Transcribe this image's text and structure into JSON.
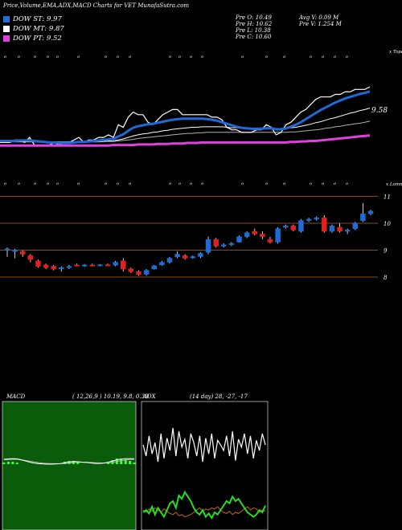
{
  "header": {
    "title": "Price,Volume,EMA,ADX,MACD Charts for VET MunafaSutra.com"
  },
  "legend": [
    {
      "label": "DOW ST: 9.97",
      "color": "#1e6bd8"
    },
    {
      "label": "DOW MT: 9.87",
      "color": "#ffffff"
    },
    {
      "label": "DOW PT: 9.52",
      "color": "#e040e0"
    }
  ],
  "stats": {
    "col1": [
      "Pre  O: 10.49",
      "Pre  H: 10.62",
      "Pre  L: 10.38",
      "Pre  C: 10.60"
    ],
    "col2": [
      "Avg V: 0.09 M",
      "Pre  V: 1.254  M"
    ]
  },
  "ema_panel": {
    "corner_label": "x Topa",
    "bottom_label": "x Lomn",
    "last_value": "9.58",
    "white_line": [
      2,
      2,
      2,
      2.5,
      2.5,
      2,
      3,
      1.5,
      1.5,
      1.5,
      1.5,
      2,
      1.5,
      2,
      2,
      2.5,
      3,
      2,
      2.5,
      2.5,
      3,
      3,
      3.5,
      3,
      5.5,
      5,
      7,
      8,
      7.5,
      7.5,
      6,
      5.5,
      6.5,
      7.5,
      8,
      8.5,
      8.5,
      7.5,
      7.5,
      7.5,
      7.5,
      7.5,
      7.5,
      7,
      7,
      6.5,
      5,
      4.5,
      4.5,
      4,
      4,
      4,
      4.5,
      4.5,
      5.5,
      5,
      3.5,
      4,
      5.5,
      6,
      7,
      8,
      8.5,
      9.5,
      10.5,
      11,
      11,
      11,
      11.5,
      11.5,
      12,
      12,
      12.5,
      12.5,
      12.5,
      13
    ],
    "blue_line": [
      2.3,
      2.3,
      2.3,
      2.3,
      2.4,
      2.4,
      2.4,
      2.3,
      2.2,
      2.1,
      2,
      2,
      1.9,
      1.9,
      1.9,
      2,
      2.1,
      2.1,
      2.2,
      2.3,
      2.4,
      2.5,
      2.6,
      2.7,
      3.2,
      3.6,
      4.3,
      4.9,
      5.2,
      5.4,
      5.6,
      5.7,
      5.9,
      6.1,
      6.3,
      6.5,
      6.6,
      6.7,
      6.7,
      6.7,
      6.7,
      6.7,
      6.6,
      6.5,
      6.3,
      6,
      5.7,
      5.4,
      5.1,
      4.9,
      4.8,
      4.7,
      4.7,
      4.7,
      4.8,
      4.8,
      4.6,
      4.6,
      4.8,
      5.1,
      5.5,
      6,
      6.6,
      7.2,
      7.8,
      8.4,
      8.9,
      9.4,
      9.9,
      10.3,
      10.7,
      11,
      11.3,
      11.6,
      11.8,
      12.1
    ],
    "white_slow": [
      2.2,
      2.2,
      2.2,
      2.2,
      2.2,
      2.2,
      2.2,
      2.2,
      2.2,
      2.2,
      2.1,
      2.1,
      2.1,
      2.1,
      2.1,
      2.1,
      2.1,
      2.1,
      2.1,
      2.2,
      2.2,
      2.2,
      2.3,
      2.3,
      2.5,
      2.7,
      3,
      3.3,
      3.5,
      3.7,
      3.8,
      4,
      4.1,
      4.3,
      4.4,
      4.6,
      4.7,
      4.8,
      4.9,
      5,
      5,
      5.1,
      5.1,
      5.1,
      5.1,
      5.1,
      5,
      4.9,
      4.9,
      4.8,
      4.8,
      4.8,
      4.7,
      4.7,
      4.7,
      4.7,
      4.7,
      4.7,
      4.8,
      4.9,
      5,
      5.2,
      5.4,
      5.6,
      5.9,
      6.1,
      6.4,
      6.7,
      6.9,
      7.2,
      7.5,
      7.8,
      8,
      8.3,
      8.5,
      8.8
    ],
    "gray_slow": [
      2.1,
      2.1,
      2.1,
      2.1,
      2.1,
      2.1,
      2.1,
      2.1,
      2.1,
      2.1,
      2.1,
      2.1,
      2.1,
      2.1,
      2.1,
      2.1,
      2.1,
      2.1,
      2.1,
      2.1,
      2.1,
      2.2,
      2.2,
      2.2,
      2.3,
      2.4,
      2.5,
      2.6,
      2.8,
      2.9,
      3,
      3.1,
      3.2,
      3.3,
      3.4,
      3.5,
      3.6,
      3.7,
      3.8,
      3.8,
      3.9,
      3.9,
      4,
      4,
      4,
      4,
      4,
      4,
      4,
      4,
      4,
      4,
      4,
      4,
      4,
      4,
      4,
      4,
      4,
      4.1,
      4.1,
      4.2,
      4.3,
      4.4,
      4.5,
      4.6,
      4.8,
      4.9,
      5.1,
      5.2,
      5.4,
      5.5,
      5.7,
      5.8,
      6,
      6.2
    ],
    "magenta_line": [
      1.4,
      1.4,
      1.4,
      1.4,
      1.4,
      1.4,
      1.4,
      1.4,
      1.4,
      1.4,
      1.4,
      1.4,
      1.4,
      1.4,
      1.4,
      1.4,
      1.4,
      1.4,
      1.4,
      1.4,
      1.4,
      1.4,
      1.4,
      1.5,
      1.5,
      1.5,
      1.5,
      1.5,
      1.6,
      1.6,
      1.6,
      1.6,
      1.7,
      1.7,
      1.7,
      1.8,
      1.8,
      1.8,
      1.9,
      1.9,
      1.9,
      2,
      2,
      2,
      2,
      2,
      2,
      2,
      2,
      2,
      2,
      2,
      2,
      2,
      2,
      2,
      2,
      2,
      2,
      2.1,
      2.1,
      2.2,
      2.2,
      2.3,
      2.3,
      2.4,
      2.5,
      2.6,
      2.7,
      2.8,
      2.9,
      3,
      3.1,
      3.2,
      3.3,
      3.4
    ]
  },
  "price_panel": {
    "ticks": [
      "11",
      "10",
      "9",
      "8"
    ],
    "candles": [
      {
        "o": 9.0,
        "h": 9.1,
        "l": 8.75,
        "c": 9.05
      },
      {
        "o": 8.95,
        "h": 9.05,
        "l": 8.7,
        "c": 9.0
      },
      {
        "o": 8.95,
        "h": 9.0,
        "l": 8.75,
        "c": 8.85
      },
      {
        "o": 8.8,
        "h": 8.85,
        "l": 8.55,
        "c": 8.65
      },
      {
        "o": 8.6,
        "h": 8.65,
        "l": 8.35,
        "c": 8.4
      },
      {
        "o": 8.45,
        "h": 8.5,
        "l": 8.3,
        "c": 8.35
      },
      {
        "o": 8.4,
        "h": 8.45,
        "l": 8.25,
        "c": 8.3
      },
      {
        "o": 8.3,
        "h": 8.4,
        "l": 8.2,
        "c": 8.35
      },
      {
        "o": 8.35,
        "h": 8.45,
        "l": 8.3,
        "c": 8.4
      },
      {
        "o": 8.45,
        "h": 8.5,
        "l": 8.4,
        "c": 8.42
      },
      {
        "o": 8.42,
        "h": 8.48,
        "l": 8.38,
        "c": 8.45
      },
      {
        "o": 8.45,
        "h": 8.5,
        "l": 8.4,
        "c": 8.43
      },
      {
        "o": 8.43,
        "h": 8.48,
        "l": 8.4,
        "c": 8.46
      },
      {
        "o": 8.46,
        "h": 8.5,
        "l": 8.42,
        "c": 8.44
      },
      {
        "o": 8.44,
        "h": 8.6,
        "l": 8.4,
        "c": 8.55
      },
      {
        "o": 8.6,
        "h": 8.7,
        "l": 8.2,
        "c": 8.3
      },
      {
        "o": 8.3,
        "h": 8.35,
        "l": 8.15,
        "c": 8.2
      },
      {
        "o": 8.2,
        "h": 8.25,
        "l": 8.05,
        "c": 8.1
      },
      {
        "o": 8.1,
        "h": 8.3,
        "l": 8.05,
        "c": 8.25
      },
      {
        "o": 8.3,
        "h": 8.45,
        "l": 8.28,
        "c": 8.42
      },
      {
        "o": 8.45,
        "h": 8.6,
        "l": 8.42,
        "c": 8.55
      },
      {
        "o": 8.55,
        "h": 8.75,
        "l": 8.5,
        "c": 8.7
      },
      {
        "o": 8.75,
        "h": 8.95,
        "l": 8.7,
        "c": 8.85
      },
      {
        "o": 8.8,
        "h": 8.85,
        "l": 8.65,
        "c": 8.7
      },
      {
        "o": 8.72,
        "h": 8.8,
        "l": 8.68,
        "c": 8.76
      },
      {
        "o": 8.76,
        "h": 8.92,
        "l": 8.7,
        "c": 8.88
      },
      {
        "o": 8.92,
        "h": 9.5,
        "l": 8.85,
        "c": 9.4
      },
      {
        "o": 9.4,
        "h": 9.45,
        "l": 9.1,
        "c": 9.15
      },
      {
        "o": 9.15,
        "h": 9.25,
        "l": 9.1,
        "c": 9.2
      },
      {
        "o": 9.2,
        "h": 9.3,
        "l": 9.15,
        "c": 9.25
      },
      {
        "o": 9.3,
        "h": 9.55,
        "l": 9.28,
        "c": 9.5
      },
      {
        "o": 9.5,
        "h": 9.7,
        "l": 9.45,
        "c": 9.65
      },
      {
        "o": 9.7,
        "h": 9.8,
        "l": 9.55,
        "c": 9.6
      },
      {
        "o": 9.6,
        "h": 9.7,
        "l": 9.4,
        "c": 9.5
      },
      {
        "o": 9.4,
        "h": 9.5,
        "l": 9.25,
        "c": 9.3
      },
      {
        "o": 9.3,
        "h": 9.85,
        "l": 9.25,
        "c": 9.8
      },
      {
        "o": 9.85,
        "h": 9.95,
        "l": 9.8,
        "c": 9.9
      },
      {
        "o": 9.9,
        "h": 9.95,
        "l": 9.7,
        "c": 9.75
      },
      {
        "o": 9.7,
        "h": 10.15,
        "l": 9.65,
        "c": 10.1
      },
      {
        "o": 10.1,
        "h": 10.2,
        "l": 10.05,
        "c": 10.15
      },
      {
        "o": 10.15,
        "h": 10.25,
        "l": 10.1,
        "c": 10.2
      },
      {
        "o": 10.2,
        "h": 10.3,
        "l": 9.65,
        "c": 9.7
      },
      {
        "o": 9.7,
        "h": 9.95,
        "l": 9.65,
        "c": 9.9
      },
      {
        "o": 9.85,
        "h": 10.0,
        "l": 9.65,
        "c": 9.7
      },
      {
        "o": 9.7,
        "h": 9.8,
        "l": 9.6,
        "c": 9.75
      },
      {
        "o": 9.8,
        "h": 10.05,
        "l": 9.75,
        "c": 10.0
      },
      {
        "o": 10.1,
        "h": 10.75,
        "l": 10.05,
        "c": 10.35
      },
      {
        "o": 10.35,
        "h": 10.5,
        "l": 10.3,
        "c": 10.45
      }
    ]
  },
  "macd_panel": {
    "title": "MACD",
    "params": "( 12,26,9 ) 10.19, 9.8, 0.39",
    "line1": [
      2,
      2.2,
      2.3,
      2.2,
      1.8,
      1.3,
      0.8,
      0.4,
      0.2,
      0.1,
      0.0,
      0.0,
      0.1,
      0.2,
      0.6,
      0.9,
      1.1,
      1.0,
      0.8,
      0.7,
      0.5,
      0.3,
      0.3,
      0.4,
      0.8,
      1.3,
      1.8,
      2.1,
      2.3,
      2.3,
      2.2
    ],
    "line2": [
      1.8,
      1.9,
      2.0,
      2.0,
      1.8,
      1.5,
      1.2,
      0.9,
      0.6,
      0.4,
      0.3,
      0.2,
      0.2,
      0.2,
      0.3,
      0.5,
      0.7,
      0.8,
      0.8,
      0.8,
      0.7,
      0.6,
      0.5,
      0.5,
      0.6,
      0.8,
      1.1,
      1.4,
      1.7,
      1.9,
      2.0
    ],
    "hist": [
      0.2,
      0.3,
      0.3,
      0.2,
      0.0,
      -0.2,
      -0.4,
      -0.5,
      -0.4,
      -0.3,
      -0.3,
      -0.2,
      -0.1,
      0.0,
      0.3,
      0.4,
      0.4,
      0.2,
      0.0,
      -0.1,
      -0.2,
      -0.3,
      -0.2,
      -0.1,
      0.2,
      0.5,
      0.7,
      0.7,
      0.6,
      0.4,
      0.2
    ]
  },
  "adx_panel": {
    "title": "ADX",
    "params": "(14 day) 28, -27, -17",
    "adx": [
      70,
      60,
      78,
      62,
      72,
      55,
      80,
      58,
      76,
      65,
      85,
      60,
      82,
      68,
      75,
      58,
      80,
      72,
      60,
      78,
      55,
      76,
      62,
      80,
      58,
      74,
      70,
      65,
      78,
      60,
      82,
      56,
      75,
      68,
      80,
      62,
      78,
      58,
      74,
      65,
      80,
      70
    ],
    "plus_di": [
      10,
      12,
      9,
      15,
      8,
      14,
      10,
      6,
      12,
      18,
      20,
      14,
      25,
      22,
      28,
      24,
      20,
      14,
      10,
      8,
      12,
      6,
      9,
      5,
      10,
      8,
      12,
      16,
      20,
      18,
      24,
      20,
      22,
      18,
      14,
      10,
      8,
      6,
      8,
      12,
      10,
      16
    ],
    "minus_di": [
      12,
      10,
      13,
      11,
      14,
      12,
      10,
      13,
      11,
      9,
      8,
      10,
      7,
      8,
      6,
      7,
      8,
      10,
      12,
      14,
      11,
      13,
      12,
      14,
      13,
      15,
      12,
      10,
      9,
      11,
      8,
      10,
      9,
      11,
      13,
      15,
      12,
      14,
      13,
      10,
      12,
      11
    ]
  }
}
